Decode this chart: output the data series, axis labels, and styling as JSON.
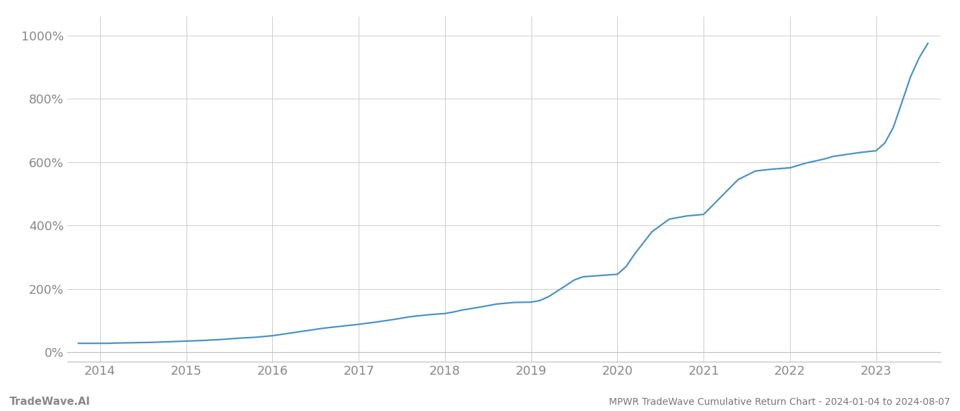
{
  "title": "MPWR TradeWave Cumulative Return Chart - 2024-01-04 to 2024-08-07",
  "watermark": "TradeWave.AI",
  "line_color": "#4a90c4",
  "background_color": "#ffffff",
  "grid_color": "#cccccc",
  "title_color": "#777777",
  "tick_color": "#888888",
  "ylim": [
    -30,
    1060
  ],
  "yticks": [
    0,
    200,
    400,
    600,
    800,
    1000
  ],
  "x_years": [
    2014,
    2015,
    2016,
    2017,
    2018,
    2019,
    2020,
    2021,
    2022,
    2023
  ],
  "xlim_left": 2013.62,
  "xlim_right": 2023.75,
  "data_x": [
    2013.75,
    2014.0,
    2014.1,
    2014.2,
    2014.4,
    2014.6,
    2014.8,
    2015.0,
    2015.2,
    2015.4,
    2015.6,
    2015.8,
    2016.0,
    2016.2,
    2016.4,
    2016.6,
    2016.8,
    2017.0,
    2017.2,
    2017.4,
    2017.6,
    2017.8,
    2018.0,
    2018.1,
    2018.2,
    2018.4,
    2018.6,
    2018.8,
    2019.0,
    2019.1,
    2019.2,
    2019.4,
    2019.5,
    2019.6,
    2019.8,
    2020.0,
    2020.1,
    2020.2,
    2020.4,
    2020.6,
    2020.8,
    2021.0,
    2021.2,
    2021.4,
    2021.6,
    2021.8,
    2022.0,
    2022.1,
    2022.2,
    2022.4,
    2022.5,
    2022.6,
    2022.7,
    2022.8,
    2022.9,
    2023.0,
    2023.1,
    2023.2,
    2023.3,
    2023.4,
    2023.5,
    2023.6
  ],
  "data_y": [
    28,
    28,
    28,
    29,
    30,
    31,
    33,
    35,
    37,
    40,
    44,
    47,
    52,
    60,
    68,
    76,
    82,
    88,
    95,
    103,
    112,
    118,
    122,
    127,
    133,
    142,
    152,
    157,
    158,
    163,
    175,
    210,
    228,
    238,
    242,
    246,
    270,
    310,
    380,
    420,
    430,
    435,
    490,
    545,
    572,
    578,
    582,
    590,
    598,
    610,
    618,
    622,
    626,
    630,
    633,
    636,
    660,
    710,
    790,
    870,
    930,
    975
  ],
  "line_width": 1.6,
  "font_size_ticks": 13,
  "font_size_title": 10,
  "font_size_watermark": 11
}
